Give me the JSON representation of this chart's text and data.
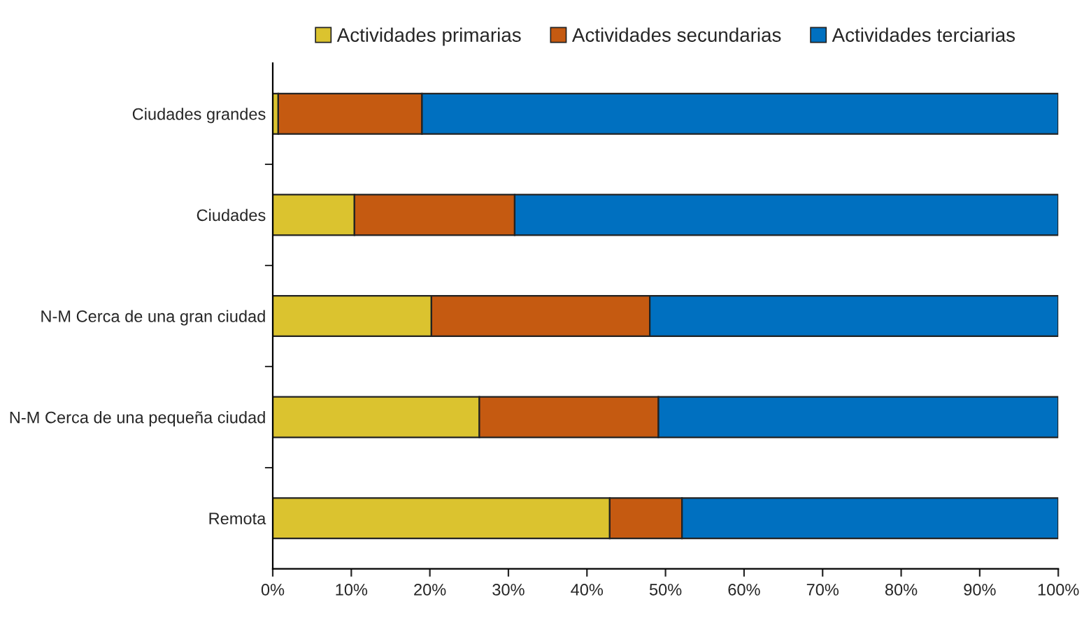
{
  "chart_data": {
    "type": "bar",
    "orientation": "horizontal",
    "stacked": true,
    "categories": [
      "Ciudades grandes",
      "Ciudades",
      "N-M Cerca de una gran ciudad",
      "N-M Cerca de una pequeña ciudad",
      "Remota"
    ],
    "series": [
      {
        "name": "Actividades primarias",
        "color": "#dbc32f",
        "values": [
          0.7,
          10.4,
          20.2,
          26.3,
          42.9
        ]
      },
      {
        "name": "Actividades secundarias",
        "color": "#c55a11",
        "values": [
          18.3,
          20.4,
          27.8,
          22.8,
          9.2
        ]
      },
      {
        "name": "Actividades terciarias",
        "color": "#0070c0",
        "values": [
          81.0,
          69.2,
          52.0,
          50.9,
          47.9
        ]
      }
    ],
    "xlim": [
      0,
      100
    ],
    "xticks": [
      {
        "value": 0,
        "label": "0%"
      },
      {
        "value": 10,
        "label": "10%"
      },
      {
        "value": 20,
        "label": "20%"
      },
      {
        "value": 30,
        "label": "30%"
      },
      {
        "value": 40,
        "label": "40%"
      },
      {
        "value": 50,
        "label": "50%"
      },
      {
        "value": 60,
        "label": "60%"
      },
      {
        "value": 70,
        "label": "70%"
      },
      {
        "value": 80,
        "label": "80%"
      },
      {
        "value": 90,
        "label": "90%"
      },
      {
        "value": 100,
        "label": "100%"
      }
    ],
    "grid": false,
    "legend": "top"
  }
}
